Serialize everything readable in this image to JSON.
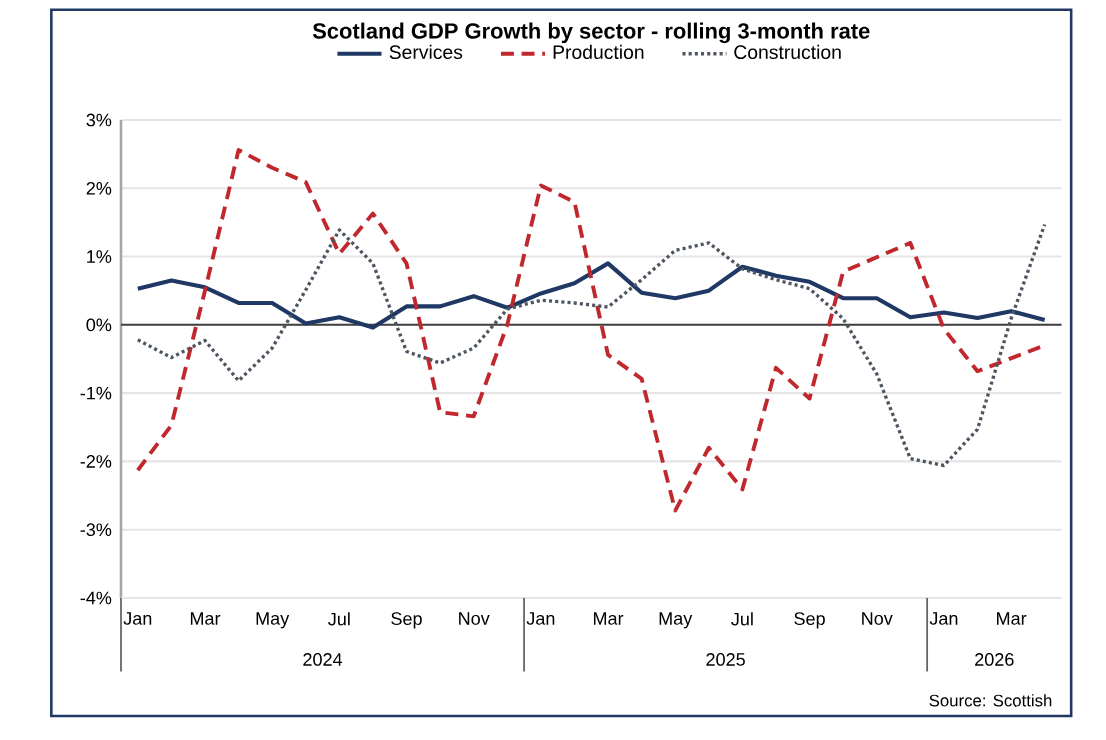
{
  "chart_data": {
    "type": "line",
    "title": "Scotland GDP Growth by sector - rolling 3-month rate",
    "categories": [
      "Jan",
      null,
      "Mar",
      null,
      "May",
      null,
      "Jul",
      null,
      "Sep",
      null,
      "Nov",
      null,
      "Jan",
      null,
      "Mar",
      null,
      "May",
      null,
      "Jul",
      null,
      "Sep",
      null,
      "Nov",
      null,
      "Jan",
      null,
      "Mar",
      null
    ],
    "series": [
      {
        "name": "Services",
        "color": "#1f3864",
        "line_style": "solid",
        "values": [
          0.53,
          0.65,
          0.55,
          0.32,
          0.32,
          0.02,
          0.11,
          -0.04,
          0.27,
          0.27,
          0.42,
          0.25,
          0.46,
          0.61,
          0.9,
          0.47,
          0.39,
          0.5,
          0.85,
          0.72,
          0.63,
          0.39,
          0.39,
          0.11,
          0.18,
          0.1,
          0.2,
          0.07
        ]
      },
      {
        "name": "Production",
        "color": "#c0282d",
        "line_style": "dashed",
        "values": [
          -2.13,
          -1.47,
          0.5,
          2.56,
          2.3,
          2.09,
          1.04,
          1.63,
          0.9,
          -1.28,
          -1.34,
          0.0,
          2.04,
          1.8,
          -0.44,
          -0.79,
          -2.72,
          -1.8,
          -2.41,
          -0.63,
          -1.08,
          0.78,
          0.99,
          1.2,
          -0.06,
          -0.68,
          -0.49,
          -0.3
        ]
      },
      {
        "name": "Construction",
        "color": "#4d5661",
        "line_style": "dotted",
        "values": [
          -0.22,
          -0.48,
          -0.23,
          -0.82,
          -0.34,
          0.51,
          1.39,
          0.9,
          -0.39,
          -0.56,
          -0.34,
          0.23,
          0.36,
          0.32,
          0.26,
          0.66,
          1.09,
          1.2,
          0.82,
          0.66,
          0.53,
          0.09,
          -0.72,
          -1.96,
          -2.06,
          -1.53,
          0.09,
          1.47
        ]
      }
    ],
    "ylim": [
      -4,
      3
    ],
    "yticks": [
      {
        "value": -4,
        "label": "-4%"
      },
      {
        "value": -3,
        "label": "-3%"
      },
      {
        "value": -2,
        "label": "-2%"
      },
      {
        "value": -1,
        "label": "-1%"
      },
      {
        "value": 0,
        "label": "0%"
      },
      {
        "value": 1,
        "label": "1%"
      },
      {
        "value": 2,
        "label": "2%"
      },
      {
        "value": 3,
        "label": "3%"
      }
    ],
    "grid": "y",
    "legend": "top",
    "ref_lines": [
      {
        "axis": "y",
        "value": 0,
        "color": "#404040"
      }
    ],
    "annotations": [
      "2024",
      "2025",
      "2026",
      "Source: Scottish"
    ]
  }
}
